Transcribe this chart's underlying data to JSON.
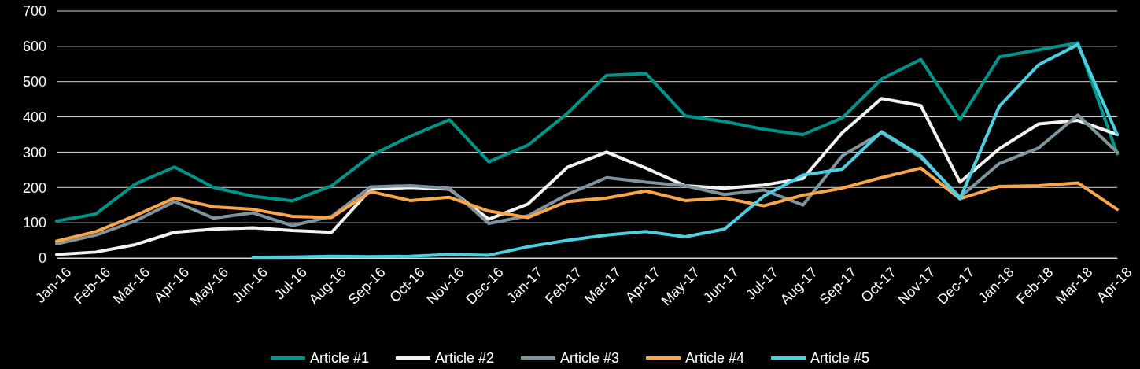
{
  "chart_data": {
    "type": "line",
    "categories": [
      "Jan-16",
      "Feb-16",
      "Mar-16",
      "Apr-16",
      "May-16",
      "Jun-16",
      "Jul-16",
      "Aug-16",
      "Sep-16",
      "Oct-16",
      "Nov-16",
      "Dec-16",
      "Jan-17",
      "Feb-17",
      "Mar-17",
      "Apr-17",
      "May-17",
      "Jun-17",
      "Jul-17",
      "Aug-17",
      "Sep-17",
      "Oct-17",
      "Nov-17",
      "Dec-17",
      "Jan-18",
      "Feb-18",
      "Mar-18",
      "Apr-18"
    ],
    "series": [
      {
        "name": "Article #1",
        "color": "#00958a",
        "values": [
          105,
          125,
          210,
          258,
          200,
          175,
          162,
          205,
          290,
          345,
          392,
          273,
          320,
          410,
          518,
          523,
          403,
          387,
          365,
          350,
          397,
          507,
          563,
          392,
          570,
          590,
          610,
          295
        ]
      },
      {
        "name": "Article #2",
        "color": "#f2f2f2",
        "values": [
          10,
          17,
          38,
          73,
          82,
          86,
          78,
          73,
          195,
          200,
          195,
          110,
          153,
          257,
          300,
          255,
          205,
          198,
          207,
          225,
          355,
          452,
          432,
          215,
          310,
          380,
          390,
          350
        ]
      },
      {
        "name": "Article #3",
        "color": "#7f949f",
        "values": [
          40,
          65,
          105,
          160,
          113,
          128,
          92,
          118,
          202,
          205,
          198,
          98,
          120,
          180,
          228,
          215,
          205,
          180,
          193,
          150,
          290,
          355,
          285,
          173,
          268,
          312,
          405,
          300
        ]
      },
      {
        "name": "Article #4",
        "color": "#f9a54a",
        "values": [
          48,
          75,
          120,
          170,
          145,
          138,
          118,
          115,
          188,
          163,
          172,
          133,
          115,
          160,
          170,
          190,
          163,
          170,
          148,
          178,
          198,
          228,
          255,
          168,
          203,
          205,
          213,
          138
        ]
      },
      {
        "name": "Article #5",
        "color": "#4ccfe0",
        "values": [
          null,
          null,
          null,
          null,
          null,
          2,
          3,
          5,
          4,
          5,
          10,
          8,
          32,
          50,
          65,
          75,
          60,
          82,
          175,
          235,
          252,
          358,
          290,
          168,
          430,
          548,
          605,
          350
        ]
      }
    ],
    "ylim": [
      0,
      700
    ],
    "yticks": [
      0,
      100,
      200,
      300,
      400,
      500,
      600,
      700
    ],
    "grid": "y",
    "legend": "bottom",
    "marker": "none",
    "line_style": "solid"
  }
}
